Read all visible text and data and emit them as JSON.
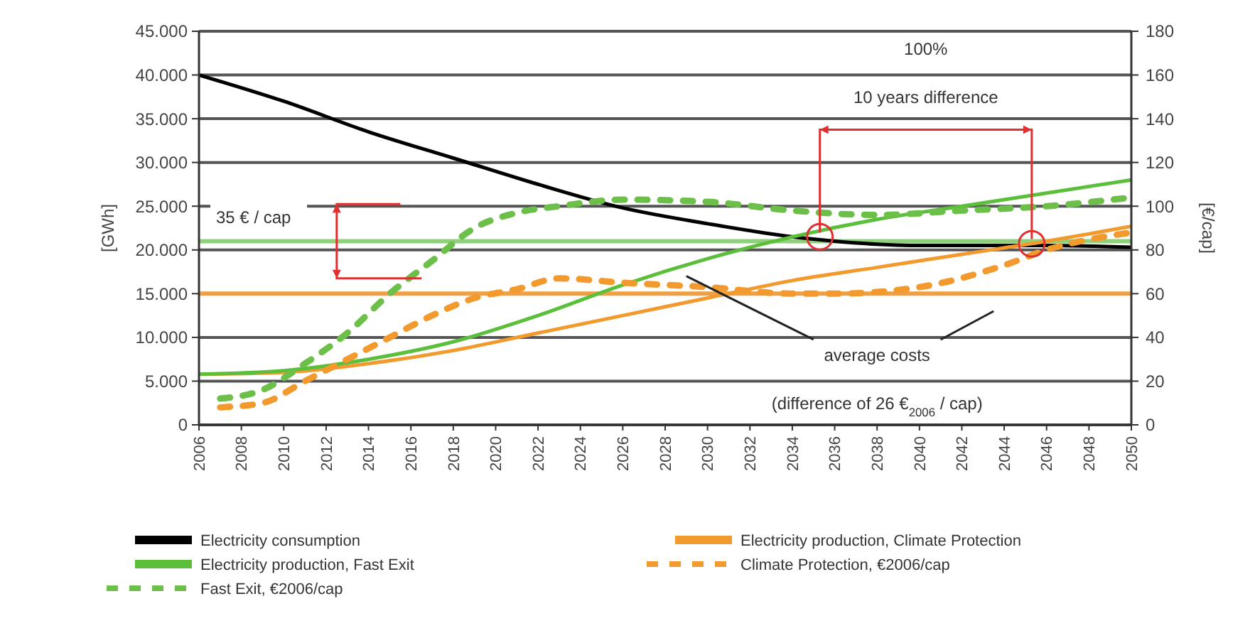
{
  "chart_data": {
    "type": "line",
    "xlim": [
      2006,
      2050
    ],
    "xticks": [
      2006,
      2008,
      2010,
      2012,
      2014,
      2016,
      2018,
      2020,
      2022,
      2024,
      2026,
      2028,
      2030,
      2032,
      2034,
      2036,
      2038,
      2040,
      2042,
      2044,
      2046,
      2048,
      2050
    ],
    "ylim": [
      0,
      45000
    ],
    "yticks": [
      {
        "value": 0,
        "label": "0"
      },
      {
        "value": 5000,
        "label": "5.000"
      },
      {
        "value": 10000,
        "label": "10.000"
      },
      {
        "value": 15000,
        "label": "15.000"
      },
      {
        "value": 20000,
        "label": "20.000"
      },
      {
        "value": 25000,
        "label": "25.000"
      },
      {
        "value": 30000,
        "label": "30.000"
      },
      {
        "value": 35000,
        "label": "35.000"
      },
      {
        "value": 40000,
        "label": "40.000"
      },
      {
        "value": 45000,
        "label": "45.000"
      }
    ],
    "y2lim": [
      0,
      180
    ],
    "y2ticks": [
      0,
      20,
      40,
      60,
      80,
      100,
      120,
      140,
      160,
      180
    ],
    "ylabel": "[GWh]",
    "y2label": "[€/cap]",
    "grid": "y",
    "legend": "bottom",
    "ref_lines": [
      {
        "axis": "y",
        "value": 15000,
        "color": "#f0a040"
      },
      {
        "axis": "y",
        "value": 21000,
        "color": "#8fd07a"
      }
    ],
    "annotations": [
      "35 € / cap",
      "100%",
      "10 years difference",
      "average costs",
      "(difference of 26 €$_{2006}$ / cap)"
    ],
    "series": [
      {
        "name": "Electricity consumption",
        "color": "#000000",
        "line_style": "solid",
        "x": [
          2006,
          2010,
          2014,
          2018,
          2022,
          2026,
          2030,
          2034,
          2036,
          2040,
          2046,
          2050
        ],
        "values": [
          40000,
          37000,
          33500,
          30500,
          27500,
          24800,
          23000,
          21500,
          21000,
          20500,
          20500,
          20300
        ]
      },
      {
        "name": "Electricity production, Climate Protection",
        "color": "#f39a2e",
        "line_style": "solid",
        "x": [
          2006,
          2010,
          2014,
          2018,
          2022,
          2026,
          2030,
          2034,
          2038,
          2042,
          2046,
          2050
        ],
        "values": [
          5800,
          6000,
          7000,
          8500,
          10500,
          12500,
          14500,
          16500,
          18000,
          19500,
          21000,
          22700
        ]
      },
      {
        "name": "Electricity production, Fast Exit",
        "color": "#5cbf3c",
        "line_style": "solid",
        "x": [
          2006,
          2010,
          2014,
          2018,
          2022,
          2026,
          2030,
          2034,
          2038,
          2042,
          2046,
          2050
        ],
        "values": [
          5800,
          6200,
          7500,
          9500,
          12500,
          16000,
          19000,
          21500,
          23500,
          25000,
          26500,
          28000
        ]
      },
      {
        "name": "Climate Protection, €2006/cap",
        "color": "#f39a2e",
        "line_style": "dashed",
        "axis": "y2",
        "x": [
          2007,
          2009,
          2011,
          2013,
          2015,
          2017,
          2019,
          2021,
          2023,
          2026,
          2030,
          2034,
          2036,
          2040,
          2044,
          2046,
          2050
        ],
        "values": [
          8,
          10,
          20,
          30,
          40,
          50,
          58,
          62,
          67,
          65,
          63,
          60,
          60,
          63,
          73,
          80,
          88
        ]
      },
      {
        "name": "Fast Exit, €2006/cap",
        "color": "#6cc04a",
        "line_style": "dashed",
        "axis": "y2",
        "x": [
          2007,
          2009,
          2011,
          2013,
          2015,
          2017,
          2019,
          2021,
          2023,
          2026,
          2030,
          2034,
          2038,
          2042,
          2046,
          2050
        ],
        "values": [
          12,
          16,
          28,
          42,
          60,
          75,
          90,
          97,
          100,
          103,
          102,
          98,
          96,
          98,
          100,
          104
        ]
      }
    ]
  }
}
